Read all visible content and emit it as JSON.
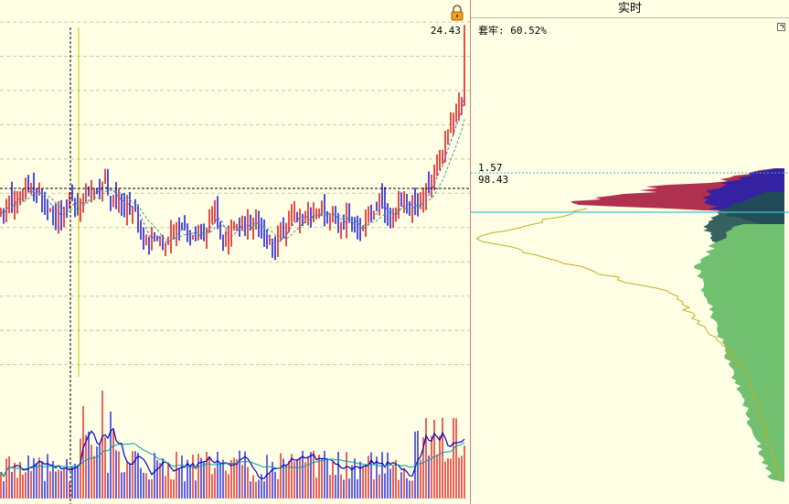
{
  "chart_data": [
    {
      "type": "candlestick",
      "panel": "price",
      "price_range": [
        10.2,
        25.6
      ],
      "grid_levels": [
        25.0,
        23.6,
        22.2,
        20.8,
        19.4,
        18.0,
        16.6,
        15.2,
        13.8,
        12.4,
        11.0
      ],
      "crosshair_price": 18.2,
      "highest_price_label": "24.43",
      "series": [
        {
          "name": "bars",
          "color_up": "#E02020",
          "color_down": "#2020E0"
        },
        {
          "name": "ma_a",
          "color": "#6060E0",
          "style": "dashed"
        },
        {
          "name": "ma_b",
          "color": "#40A080",
          "style": "dashed"
        }
      ]
    },
    {
      "type": "bar",
      "panel": "volume",
      "series": [
        {
          "name": "volume_ma_short",
          "color": "#0000C0"
        },
        {
          "name": "volume_ma_long",
          "color": "#00A0A0"
        }
      ]
    },
    {
      "type": "area",
      "panel": "chip-distribution",
      "trapped_ratio": "套牢: 60.52%",
      "upper_label": "1.57",
      "lower_label": "98.43",
      "colors": {
        "red": "#B03050",
        "blue": "#2020B0",
        "dark": "#205050",
        "green": "#70C070",
        "olive": "#C0B020"
      }
    }
  ],
  "header": {
    "tab_label": "实时"
  },
  "icons": {
    "lock": "lock-icon",
    "expand": "expand-icon"
  }
}
